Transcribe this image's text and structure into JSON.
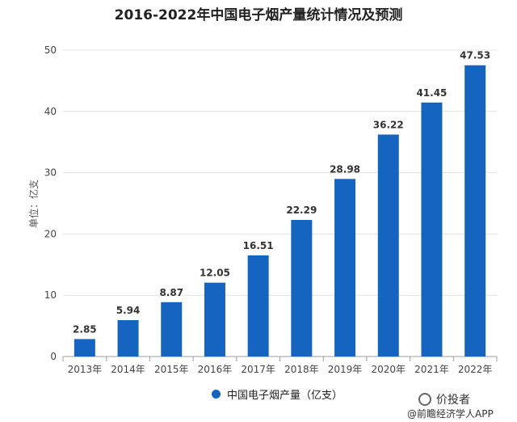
{
  "chart_data": {
    "type": "bar",
    "title": "2016-2022年中国电子烟产量统计情况及预测",
    "ylabel": "单位：亿支",
    "xlabel": "",
    "categories": [
      "2013年",
      "2014年",
      "2015年",
      "2016年",
      "2017年",
      "2018年",
      "2019年",
      "2020年",
      "2021年",
      "2022年"
    ],
    "series": [
      {
        "name": "中国电子烟产量（亿支）",
        "values": [
          2.85,
          5.94,
          8.87,
          12.05,
          16.51,
          22.29,
          28.98,
          36.22,
          41.45,
          47.53
        ]
      }
    ],
    "value_labels": [
      "2.85",
      "5.94",
      "8.87",
      "12.05",
      "16.51",
      "22.29",
      "28.98",
      "36.22",
      "41.45",
      "47.53"
    ],
    "ylim": [
      0,
      50
    ],
    "yticks": [
      "0",
      "10",
      "20",
      "30",
      "40",
      "50"
    ],
    "grid": true,
    "legend_position": "bottom",
    "bar_color": "#1565c0"
  },
  "watermark": {
    "name": "价投者",
    "credit": "@前瞻经济学人APP"
  }
}
